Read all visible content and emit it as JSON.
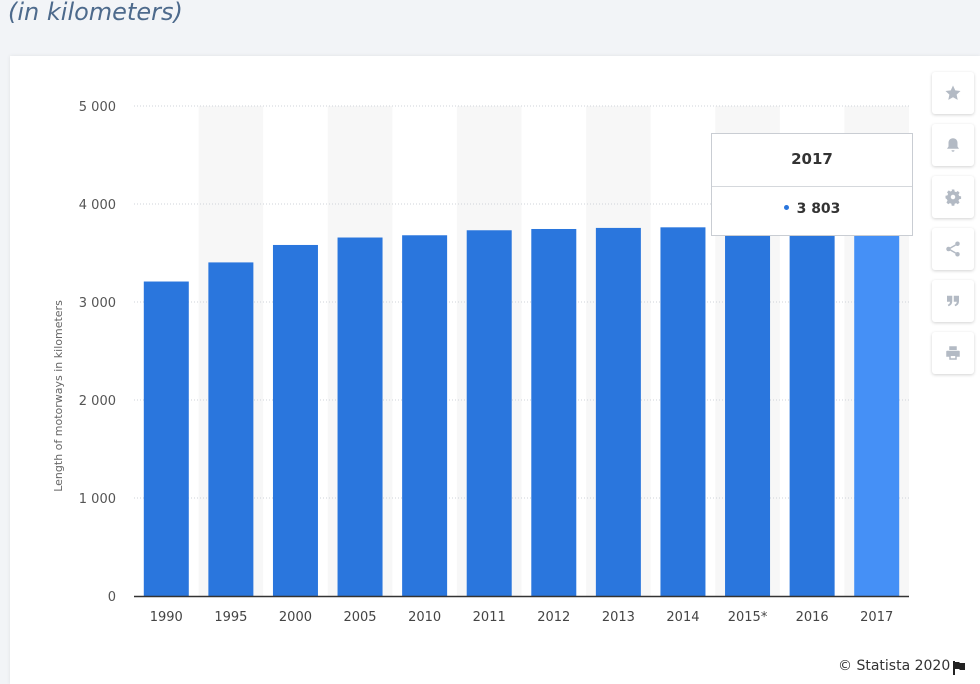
{
  "heading": "(in kilometers)",
  "chart_data": {
    "type": "bar",
    "categories": [
      "1990",
      "1995",
      "2000",
      "2005",
      "2010",
      "2011",
      "2012",
      "2013",
      "2014",
      "2015*",
      "2016",
      "2017"
    ],
    "values": [
      3209,
      3404,
      3582,
      3658,
      3681,
      3732,
      3745,
      3756,
      3762,
      3780,
      3790,
      3803
    ],
    "ylabel": "Length of motorways in kilometers",
    "ylim": [
      0,
      5000
    ],
    "yticks": [
      0,
      1000,
      2000,
      3000,
      4000,
      5000
    ],
    "ytick_labels": [
      "0",
      "1 000",
      "2 000",
      "3 000",
      "4 000",
      "5 000"
    ],
    "grid": true,
    "bar_color": "#2a76dd",
    "highlight_color": "#4590f6",
    "highlight_index": 11
  },
  "tooltip": {
    "title": "2017",
    "value": "3 803"
  },
  "tools": [
    {
      "name": "favorite",
      "icon": "star-icon"
    },
    {
      "name": "notify",
      "icon": "bell-icon"
    },
    {
      "name": "settings",
      "icon": "gear-icon"
    },
    {
      "name": "share",
      "icon": "share-icon"
    },
    {
      "name": "cite",
      "icon": "quote-icon"
    },
    {
      "name": "print",
      "icon": "print-icon"
    }
  ],
  "credit": "© Statista 2020"
}
